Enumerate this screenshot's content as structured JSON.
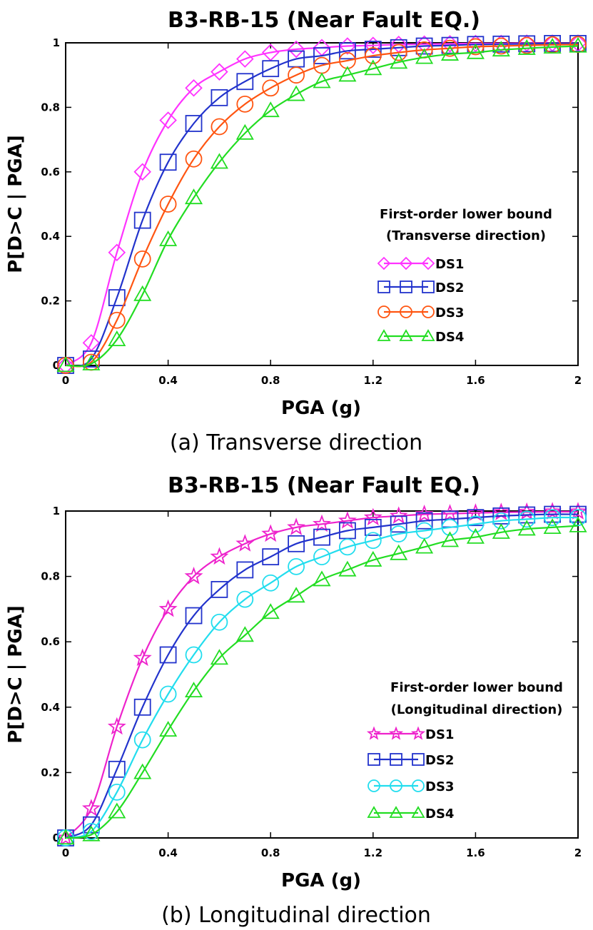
{
  "chart_data": [
    {
      "type": "line",
      "title": "B3-RB-15 (Near Fault EQ.)",
      "xlabel": "PGA (g)",
      "ylabel": "P[D>C | PGA]",
      "caption": "(a) Transverse direction",
      "xlim": [
        0,
        2
      ],
      "ylim": [
        0,
        1
      ],
      "xticks": [
        "0",
        "0.4",
        "0.8",
        "1.2",
        "1.6",
        "2"
      ],
      "yticks": [
        "0",
        "0.2",
        "0.4",
        "0.6",
        "0.8",
        "1"
      ],
      "legend_title": [
        "First-order lower bound",
        "(Transverse direction)"
      ],
      "x": [
        0,
        0.1,
        0.2,
        0.3,
        0.4,
        0.5,
        0.6,
        0.7,
        0.8,
        0.9,
        1.0,
        1.1,
        1.2,
        1.3,
        1.4,
        1.5,
        1.6,
        1.7,
        1.8,
        1.9,
        2.0
      ],
      "series": [
        {
          "name": "DS1",
          "color": "#ff33ff",
          "marker": "diamond",
          "values": [
            0.0,
            0.07,
            0.35,
            0.6,
            0.76,
            0.86,
            0.91,
            0.95,
            0.97,
            0.98,
            0.985,
            0.99,
            0.992,
            0.995,
            0.996,
            0.997,
            0.998,
            0.998,
            0.999,
            0.999,
            0.999
          ]
        },
        {
          "name": "DS2",
          "color": "#2233cc",
          "marker": "square",
          "values": [
            0.0,
            0.02,
            0.21,
            0.45,
            0.63,
            0.75,
            0.83,
            0.88,
            0.92,
            0.95,
            0.96,
            0.975,
            0.98,
            0.985,
            0.99,
            0.992,
            0.995,
            0.996,
            0.997,
            0.998,
            0.998
          ]
        },
        {
          "name": "DS3",
          "color": "#ff5511",
          "marker": "circle",
          "values": [
            0.0,
            0.01,
            0.14,
            0.33,
            0.5,
            0.64,
            0.74,
            0.81,
            0.86,
            0.9,
            0.93,
            0.945,
            0.96,
            0.97,
            0.978,
            0.983,
            0.988,
            0.99,
            0.992,
            0.994,
            0.995
          ]
        },
        {
          "name": "DS4",
          "color": "#22dd22",
          "marker": "triangle",
          "values": [
            0.0,
            0.005,
            0.08,
            0.22,
            0.39,
            0.52,
            0.63,
            0.72,
            0.79,
            0.84,
            0.88,
            0.9,
            0.92,
            0.94,
            0.955,
            0.965,
            0.97,
            0.978,
            0.983,
            0.987,
            0.99
          ]
        }
      ]
    },
    {
      "type": "line",
      "title": "B3-RB-15 (Near Fault EQ.)",
      "xlabel": "PGA (g)",
      "ylabel": "P[D>C | PGA]",
      "caption": "(b) Longitudinal direction",
      "xlim": [
        0,
        2
      ],
      "ylim": [
        0,
        1
      ],
      "xticks": [
        "0",
        "0.4",
        "0.8",
        "1.2",
        "1.6",
        "2"
      ],
      "yticks": [
        "0",
        "0.2",
        "0.4",
        "0.6",
        "0.8",
        "1"
      ],
      "legend_title": [
        "First-order lower bound",
        "(Longitudinal direction)"
      ],
      "x": [
        0,
        0.1,
        0.2,
        0.3,
        0.4,
        0.5,
        0.6,
        0.7,
        0.8,
        0.9,
        1.0,
        1.1,
        1.2,
        1.3,
        1.4,
        1.5,
        1.6,
        1.7,
        1.8,
        1.9,
        2.0
      ],
      "series": [
        {
          "name": "DS1",
          "color": "#ee22cc",
          "marker": "star",
          "values": [
            0.0,
            0.09,
            0.34,
            0.55,
            0.7,
            0.8,
            0.86,
            0.9,
            0.93,
            0.95,
            0.96,
            0.97,
            0.98,
            0.985,
            0.99,
            0.992,
            0.994,
            0.996,
            0.997,
            0.998,
            0.998
          ]
        },
        {
          "name": "DS2",
          "color": "#2233cc",
          "marker": "square",
          "values": [
            0.0,
            0.04,
            0.21,
            0.4,
            0.56,
            0.68,
            0.76,
            0.82,
            0.86,
            0.9,
            0.92,
            0.94,
            0.95,
            0.96,
            0.97,
            0.975,
            0.98,
            0.985,
            0.988,
            0.99,
            0.99
          ]
        },
        {
          "name": "DS3",
          "color": "#22ddee",
          "marker": "circle",
          "values": [
            0.0,
            0.02,
            0.14,
            0.3,
            0.44,
            0.56,
            0.66,
            0.73,
            0.78,
            0.83,
            0.86,
            0.89,
            0.91,
            0.93,
            0.94,
            0.95,
            0.96,
            0.97,
            0.975,
            0.98,
            0.98
          ]
        },
        {
          "name": "DS4",
          "color": "#22dd22",
          "marker": "triangle",
          "values": [
            0.0,
            0.01,
            0.08,
            0.2,
            0.33,
            0.45,
            0.55,
            0.62,
            0.69,
            0.74,
            0.79,
            0.82,
            0.85,
            0.87,
            0.89,
            0.91,
            0.92,
            0.935,
            0.945,
            0.95,
            0.955
          ]
        }
      ]
    }
  ]
}
